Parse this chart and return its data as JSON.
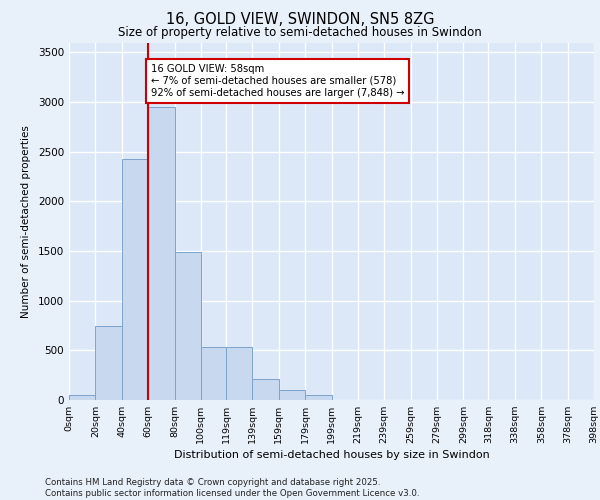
{
  "title_line1": "16, GOLD VIEW, SWINDON, SN5 8ZG",
  "title_line2": "Size of property relative to semi-detached houses in Swindon",
  "xlabel": "Distribution of semi-detached houses by size in Swindon",
  "ylabel": "Number of semi-detached properties",
  "footer": "Contains HM Land Registry data © Crown copyright and database right 2025.\nContains public sector information licensed under the Open Government Licence v3.0.",
  "bar_color": "#c8d8ef",
  "bar_edge_color": "#7aa3cc",
  "background_color": "#e8f0fa",
  "plot_bg_color": "#dce8f7",
  "grid_color": "#ffffff",
  "annotation_text": "16 GOLD VIEW: 58sqm\n← 7% of semi-detached houses are smaller (578)\n92% of semi-detached houses are larger (7,848) →",
  "vline_x": 60,
  "vline_color": "#cc0000",
  "annotation_box_color": "#cc0000",
  "categories": [
    "0sqm",
    "20sqm",
    "40sqm",
    "60sqm",
    "80sqm",
    "100sqm",
    "119sqm",
    "139sqm",
    "159sqm",
    "179sqm",
    "199sqm",
    "219sqm",
    "239sqm",
    "259sqm",
    "279sqm",
    "299sqm",
    "318sqm",
    "338sqm",
    "358sqm",
    "378sqm",
    "398sqm"
  ],
  "bin_edges": [
    0,
    20,
    40,
    60,
    80,
    100,
    119,
    139,
    159,
    179,
    199,
    219,
    239,
    259,
    279,
    299,
    318,
    338,
    358,
    378,
    398
  ],
  "bar_heights": [
    50,
    750,
    2430,
    2950,
    1490,
    535,
    535,
    210,
    105,
    55,
    0,
    0,
    0,
    0,
    0,
    0,
    0,
    0,
    0,
    0
  ],
  "ylim": [
    0,
    3600
  ],
  "yticks": [
    0,
    500,
    1000,
    1500,
    2000,
    2500,
    3000,
    3500
  ],
  "figsize": [
    6.0,
    5.0
  ],
  "dpi": 100
}
